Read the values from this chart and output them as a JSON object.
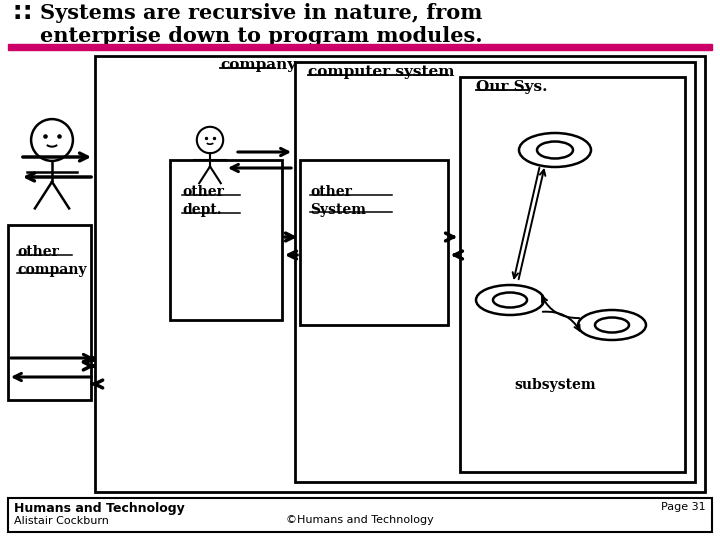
{
  "pink_bar_color": "#cc0066",
  "bg_color": "#ffffff",
  "footer_left1": "Humans and Technology",
  "footer_left2": "Alistair Cockburn",
  "footer_center": "©Humans and Technology",
  "footer_right": "Page 31",
  "label_company": "company",
  "label_computer_system": "computer system",
  "label_our_sys": "Our Sys.",
  "label_other_dept": "other\ndept.",
  "label_other_company": "other\ncompany",
  "label_other_system": "other\nSystem",
  "label_subsystem": "subsystem"
}
